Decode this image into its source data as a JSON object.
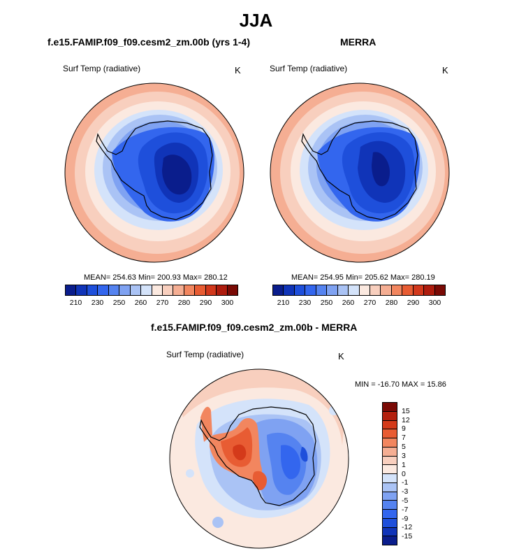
{
  "figure": {
    "title": "JJA"
  },
  "panels": [
    {
      "title": "f.e15.FAMIP.f09_f09.cesm2_zm.00b (yrs 1-4)",
      "variable": "Surf Temp (radiative)",
      "units": "K",
      "stats": "MEAN= 254.63  Min= 200.93  Max= 280.12"
    },
    {
      "title": "MERRA",
      "variable": "Surf Temp (radiative)",
      "units": "K",
      "stats": "MEAN= 254.95  Min= 205.62  Max= 280.19"
    },
    {
      "title": "f.e15.FAMIP.f09_f09.cesm2_zm.00b - MERRA",
      "variable": "Surf Temp (radiative)",
      "units": "K",
      "stats": "MIN = -16.70 MAX =  15.86"
    }
  ],
  "colorbar_abs": {
    "colors": [
      "#0a1d8c",
      "#1034b8",
      "#1e4fdb",
      "#3366ee",
      "#5583f0",
      "#7fa2f2",
      "#aac3f5",
      "#d4e3fa",
      "#fbe9e0",
      "#f8cfbe",
      "#f5ae93",
      "#f2865f",
      "#e85c33",
      "#d2381c",
      "#ae1c0e",
      "#7a0a05"
    ],
    "tick_labels": [
      "210",
      "230",
      "250",
      "260",
      "270",
      "280",
      "290",
      "300"
    ]
  },
  "colorbar_diff": {
    "colors": [
      "#7a0a05",
      "#b3200e",
      "#d43a1a",
      "#e85c33",
      "#f2865f",
      "#f5ae93",
      "#f8cfbe",
      "#fbe9e0",
      "#d4e3fa",
      "#aac3f5",
      "#7fa2f2",
      "#5583f0",
      "#3366ee",
      "#1e4fdb",
      "#1034b8",
      "#0a1d8c"
    ],
    "tick_labels": [
      "15",
      "12",
      "9",
      "7",
      "5",
      "3",
      "1",
      "0",
      "-1",
      "-3",
      "-5",
      "-7",
      "-9",
      "-12",
      "-15"
    ]
  }
}
